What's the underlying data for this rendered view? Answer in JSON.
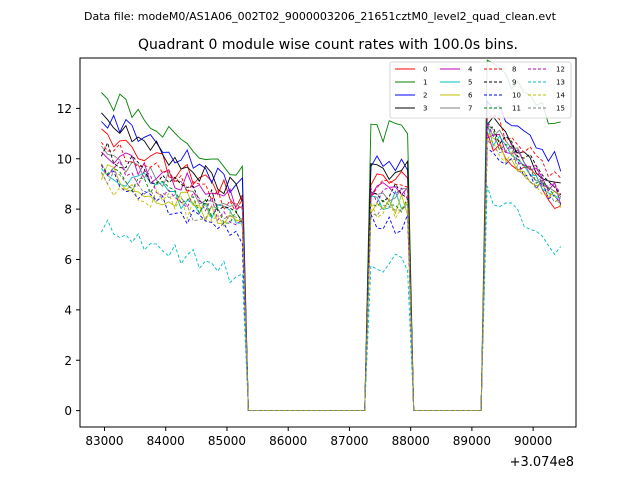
{
  "header": {
    "data_file": "Data file: modeM0/AS1A06_002T02_9000003206_21651cztM0_level2_quad_clean.evt"
  },
  "chart_data": {
    "type": "line",
    "title": "Quadrant 0 module wise count rates with 100.0s bins.",
    "xlabel": "",
    "ylabel": "",
    "x_offset_label": "+3.074e8",
    "xlim": [
      82600,
      90700
    ],
    "ylim": [
      -0.65,
      14.0
    ],
    "xticks": [
      83000,
      84000,
      85000,
      86000,
      87000,
      88000,
      89000,
      90000
    ],
    "yticks": [
      0,
      2,
      4,
      6,
      8,
      10,
      12
    ],
    "legend_position": "top-right",
    "segments": [
      {
        "x_start": 82950,
        "x_end": 85250,
        "step": 100
      },
      {
        "x_start": 87350,
        "x_end": 87950,
        "step": 100
      },
      {
        "x_start": 89250,
        "x_end": 90450,
        "step": 100
      }
    ],
    "series": [
      {
        "name": "0",
        "color": "#ff0000",
        "dash": "solid",
        "levels": [
          10.9,
          8.4,
          9.1,
          9.0
        ]
      },
      {
        "name": "1",
        "color": "#008000",
        "dash": "solid",
        "levels": [
          12.6,
          9.4,
          11.1,
          12.0
        ]
      },
      {
        "name": "2",
        "color": "#0000ff",
        "dash": "solid",
        "levels": [
          11.7,
          8.8,
          9.9,
          10.5
        ]
      },
      {
        "name": "3",
        "color": "#000000",
        "dash": "solid",
        "levels": [
          11.4,
          8.6,
          9.6,
          9.7
        ]
      },
      {
        "name": "4",
        "color": "#bf00bf",
        "dash": "solid",
        "levels": [
          10.1,
          8.3,
          8.8,
          9.3
        ]
      },
      {
        "name": "5",
        "color": "#00bfbf",
        "dash": "solid",
        "levels": [
          9.7,
          7.5,
          8.4,
          9.2
        ]
      },
      {
        "name": "6",
        "color": "#bfbf00",
        "dash": "solid",
        "levels": [
          9.5,
          7.4,
          8.2,
          9.0
        ]
      },
      {
        "name": "7",
        "color": "#808080",
        "dash": "solid",
        "levels": [
          10.2,
          7.8,
          8.6,
          9.4
        ]
      },
      {
        "name": "8",
        "color": "#ff0000",
        "dash": "dashed",
        "levels": [
          10.6,
          8.1,
          8.9,
          9.8
        ]
      },
      {
        "name": "9",
        "color": "#000000",
        "dash": "dashed",
        "levels": [
          10.3,
          7.9,
          8.7,
          9.6
        ]
      },
      {
        "name": "10",
        "color": "#0000ff",
        "dash": "dashed",
        "levels": [
          9.3,
          6.9,
          7.4,
          8.9
        ]
      },
      {
        "name": "11",
        "color": "#008000",
        "dash": "dashed",
        "levels": [
          9.6,
          7.5,
          8.3,
          9.3
        ]
      },
      {
        "name": "12",
        "color": "#bf00bf",
        "dash": "dashed",
        "levels": [
          9.8,
          7.6,
          8.5,
          9.4
        ]
      },
      {
        "name": "13",
        "color": "#00bfbf",
        "dash": "dashed",
        "levels": [
          7.4,
          5.3,
          5.9,
          7.0
        ]
      },
      {
        "name": "14",
        "color": "#bfbf00",
        "dash": "dashed",
        "levels": [
          9.1,
          7.3,
          8.0,
          9.0
        ]
      },
      {
        "name": "15",
        "color": "#808080",
        "dash": "dashed",
        "levels": [
          9.4,
          7.2,
          8.1,
          9.1
        ]
      }
    ]
  }
}
